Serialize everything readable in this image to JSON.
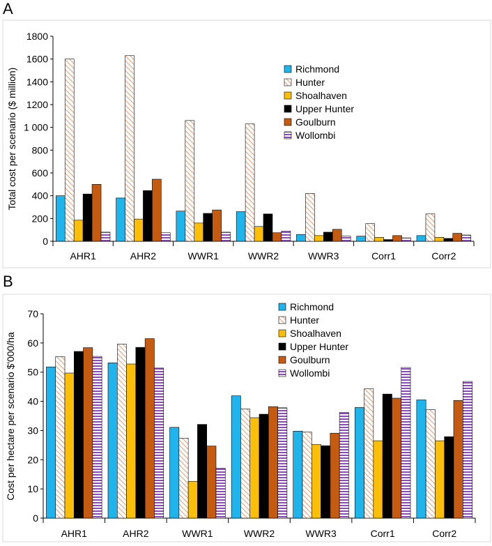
{
  "colors": {
    "Richmond": "#1fb5ec",
    "Hunter": "#e6a07a",
    "Shoalhaven": "#fcbf09",
    "Upper Hunter": "#2ea84a",
    "Goulburn": "#c55a11",
    "Wollombi": "#8e48c0"
  },
  "chart_data": [
    {
      "panel": "A",
      "type": "bar",
      "title": "",
      "xlabel": "",
      "ylabel": "Total cost per scenario ($ million)",
      "ylim": [
        0,
        1800
      ],
      "yticks": [
        0,
        200,
        400,
        600,
        800,
        1000,
        1200,
        1400,
        1600,
        1800
      ],
      "ytick_labels": [
        "0",
        "200",
        "400",
        "600",
        "800",
        "1 000",
        "1200",
        "1400",
        "1600",
        "1800"
      ],
      "grid": false,
      "legend_position": "center-right",
      "categories": [
        "AHR1",
        "AHR2",
        "WWR1",
        "WWR2",
        "WWR3",
        "Corr1",
        "Corr2"
      ],
      "series": [
        {
          "name": "Richmond",
          "values": [
            400,
            380,
            265,
            260,
            60,
            45,
            50
          ]
        },
        {
          "name": "Hunter",
          "values": [
            1600,
            1630,
            1060,
            1030,
            420,
            155,
            240
          ]
        },
        {
          "name": "Shoalhaven",
          "values": [
            185,
            195,
            160,
            130,
            50,
            35,
            35
          ]
        },
        {
          "name": "Upper Hunter",
          "values": [
            415,
            445,
            245,
            240,
            80,
            15,
            25
          ]
        },
        {
          "name": "Goulburn",
          "values": [
            500,
            545,
            275,
            75,
            105,
            50,
            70
          ]
        },
        {
          "name": "Wollombi",
          "values": [
            80,
            75,
            80,
            90,
            45,
            30,
            55
          ]
        }
      ]
    },
    {
      "panel": "B",
      "type": "bar",
      "title": "",
      "xlabel": "",
      "ylabel": "Cost per hectare per scenario $'000/ha",
      "ylim": [
        0,
        70
      ],
      "yticks": [
        0,
        10,
        20,
        30,
        40,
        50,
        60,
        70
      ],
      "ytick_labels": [
        "0",
        "10",
        "20",
        "30",
        "40",
        "50",
        "60",
        "70"
      ],
      "grid": false,
      "legend_position": "top-right",
      "categories": [
        "AHR1",
        "AHR2",
        "WWR1",
        "WWR2",
        "WWR3",
        "Corr1",
        "Corr2"
      ],
      "series": [
        {
          "name": "Richmond",
          "values": [
            51.8,
            53.2,
            31.1,
            41.9,
            29.8,
            37.9,
            40.5
          ]
        },
        {
          "name": "Hunter",
          "values": [
            55.3,
            59.6,
            27.4,
            37.4,
            29.5,
            44.3,
            37.2
          ]
        },
        {
          "name": "Shoalhaven",
          "values": [
            49.7,
            52.8,
            12.6,
            34.4,
            25.2,
            26.5,
            26.5
          ]
        },
        {
          "name": "Upper Hunter",
          "values": [
            57.1,
            58.5,
            32.1,
            35.6,
            24.8,
            42.5,
            27.9
          ]
        },
        {
          "name": "Goulburn",
          "values": [
            58.4,
            61.5,
            24.7,
            38.2,
            29.1,
            41.1,
            40.3
          ]
        },
        {
          "name": "Wollombi",
          "values": [
            55.4,
            51.4,
            17.1,
            37.8,
            36.2,
            51.6,
            46.8
          ]
        }
      ]
    }
  ]
}
